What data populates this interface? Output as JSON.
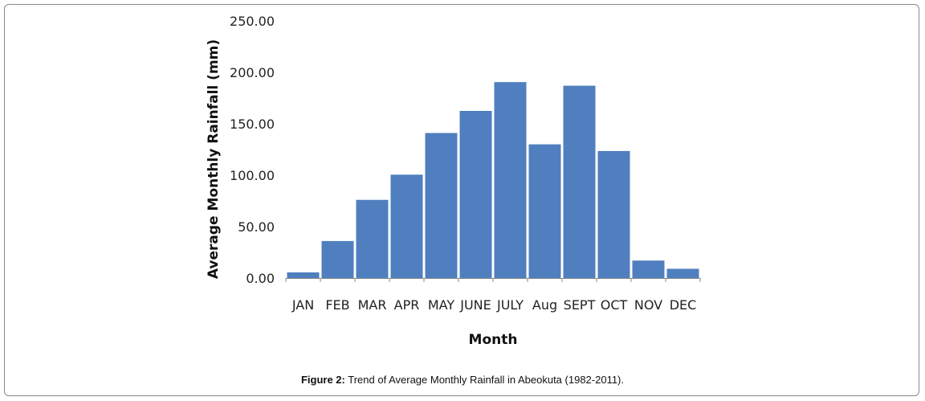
{
  "chart_data": {
    "type": "bar",
    "categories": [
      "JAN",
      "FEB",
      "MAR",
      "APR",
      "MAY",
      "JUNE",
      "JULY",
      "Aug",
      "SEPT",
      "OCT",
      "NOV",
      "DEC"
    ],
    "values": [
      5.5,
      36.0,
      76.0,
      100.5,
      141.0,
      162.5,
      190.5,
      130.0,
      187.0,
      123.5,
      17.0,
      9.0
    ],
    "title": "",
    "xlabel": "Month",
    "ylabel": "Average Monthly Rainfall (mm)",
    "ylim": [
      0,
      250
    ],
    "yticks": [
      "0.00",
      "50.00",
      "100.00",
      "150.00",
      "200.00",
      "250.00"
    ],
    "grid": false,
    "bar_color": "#4f7fbf"
  },
  "caption": {
    "label": "Figure 2:",
    "text": " Trend of Average Monthly Rainfall in Abeokuta (1982-2011)."
  }
}
